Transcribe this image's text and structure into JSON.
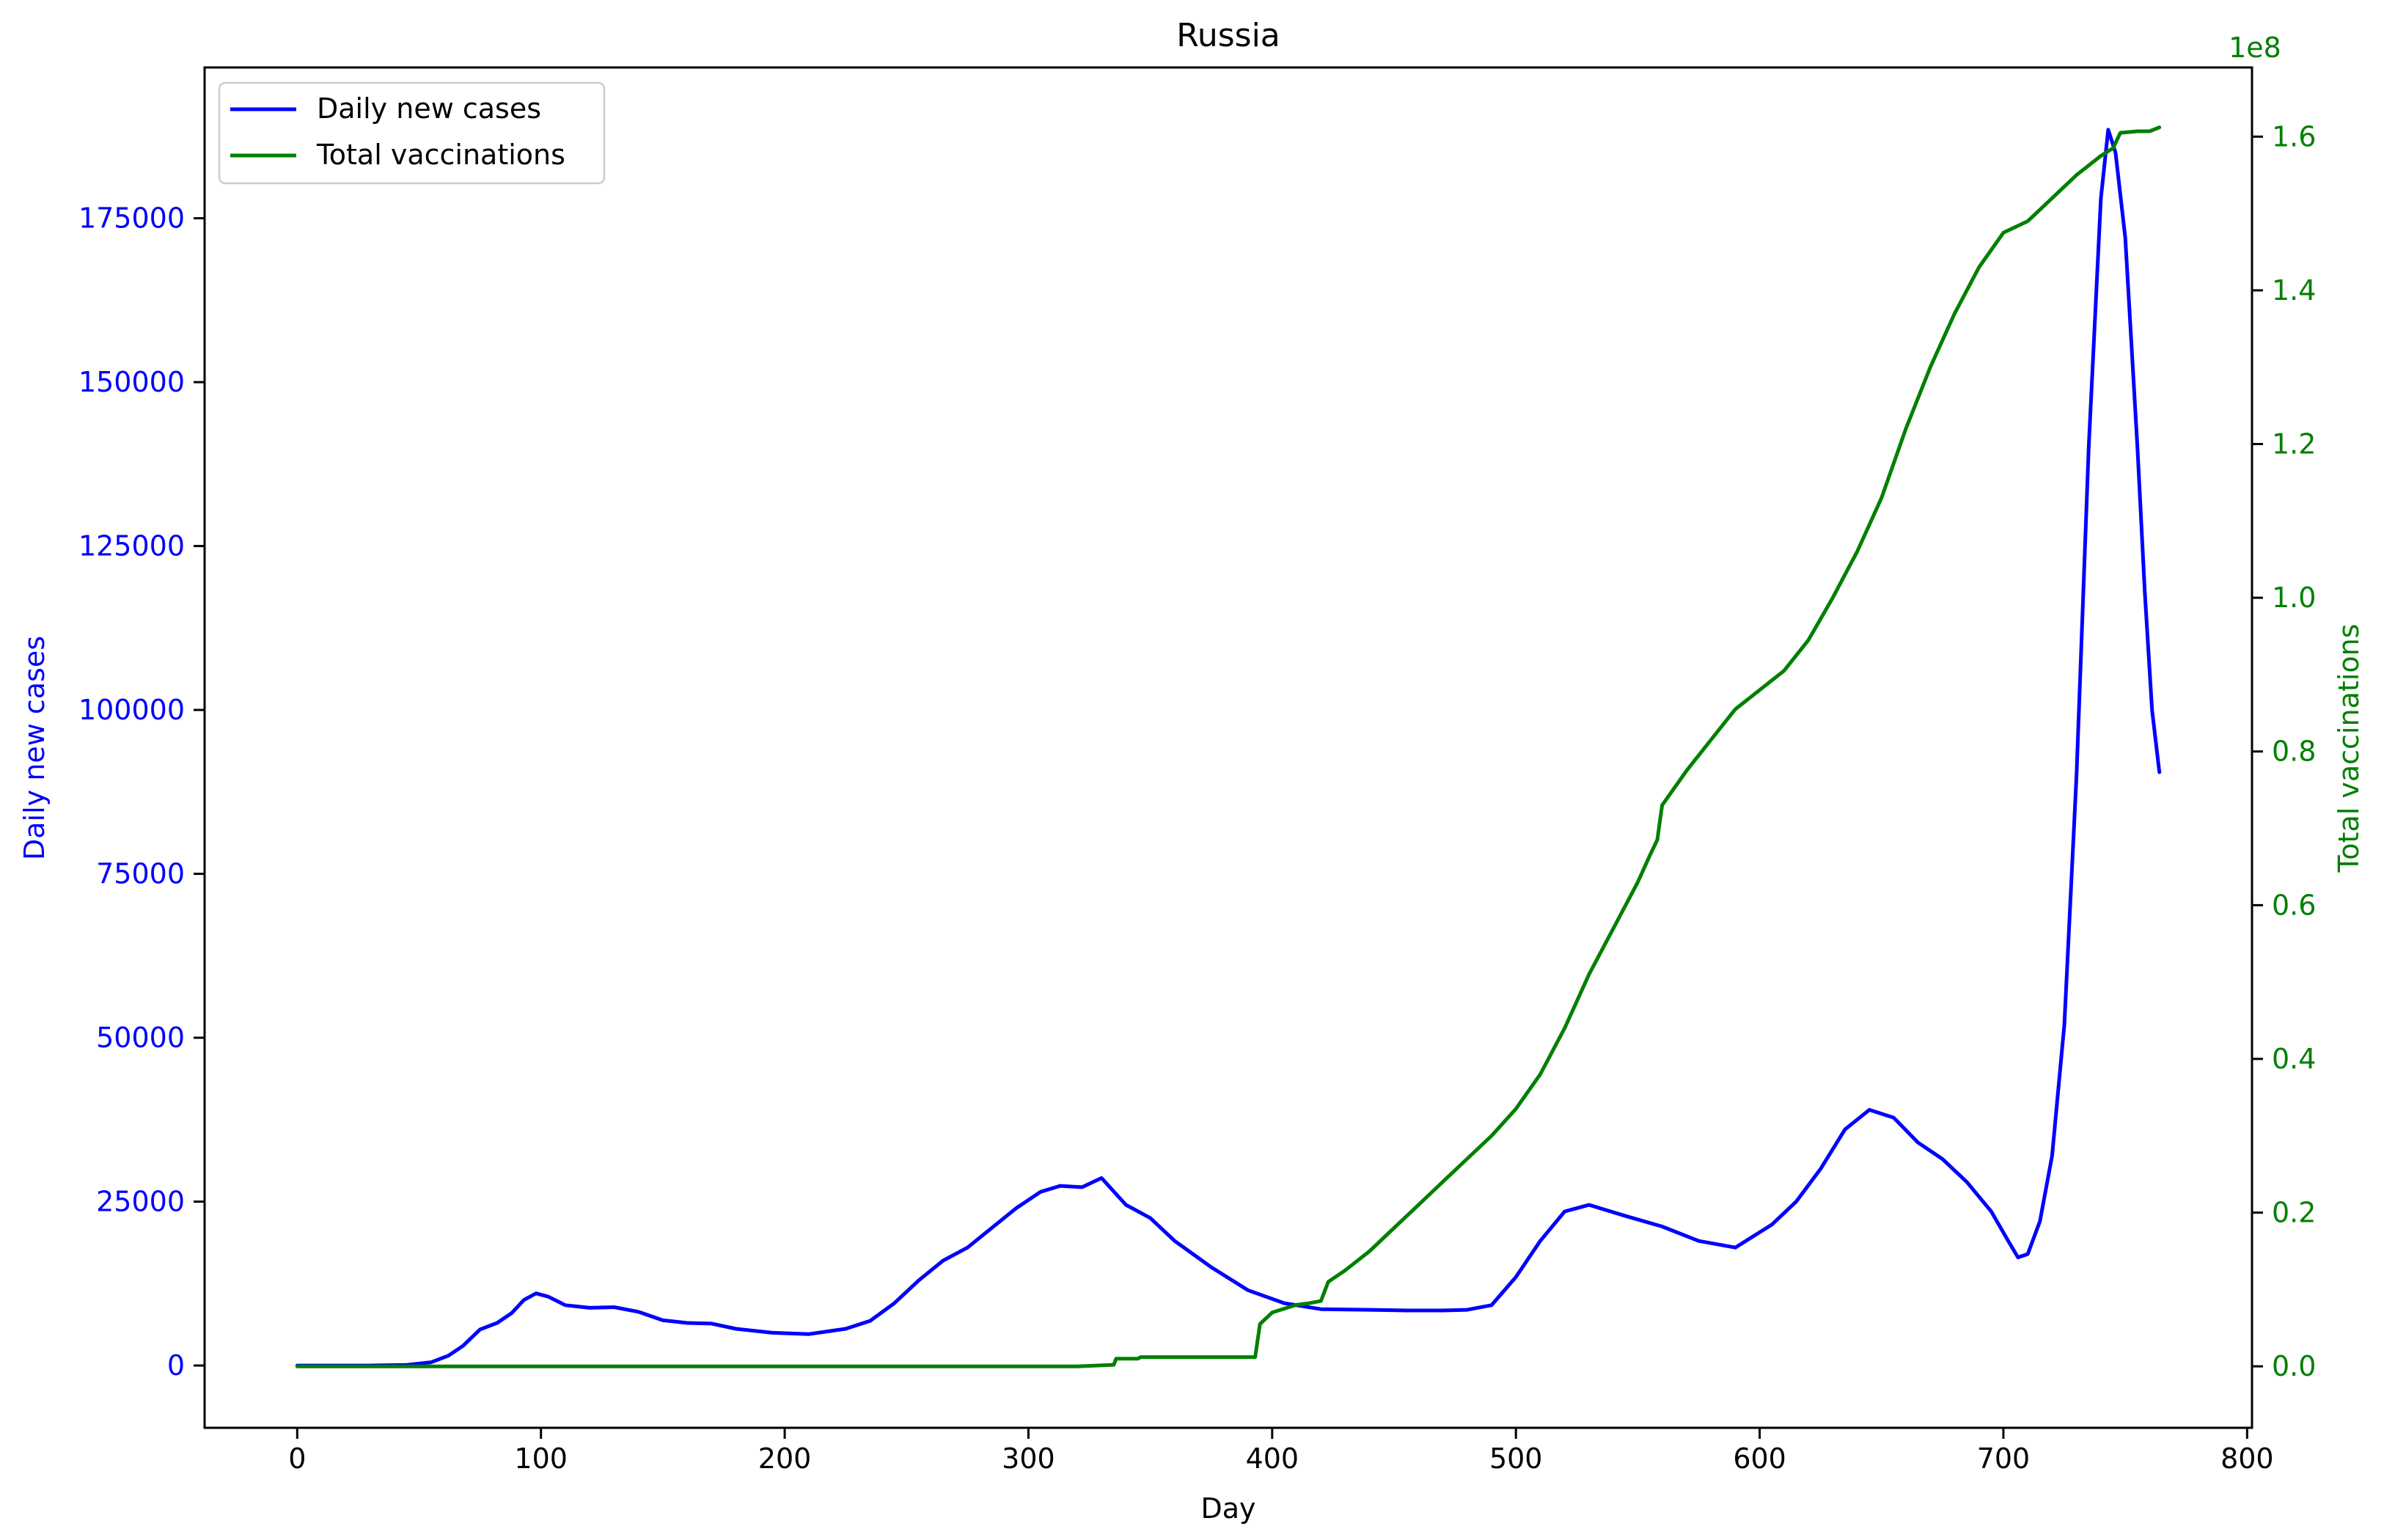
{
  "chart_data": {
    "type": "line",
    "title": "Russia",
    "xlabel": "Day",
    "ylabel_left": "Daily new cases",
    "ylabel_right": "Total vaccinations",
    "right_axis_offset_label": "1e8",
    "xlim": [
      -38,
      802
    ],
    "ylim_left": [
      -9500,
      198000
    ],
    "ylim_right": [
      -0.08,
      1.69
    ],
    "x_ticks": [
      0,
      100,
      200,
      300,
      400,
      500,
      600,
      700,
      800
    ],
    "x_tick_labels": [
      "0",
      "100",
      "200",
      "300",
      "400",
      "500",
      "600",
      "700",
      "800"
    ],
    "y_left_ticks": [
      0,
      25000,
      50000,
      75000,
      100000,
      125000,
      150000,
      175000
    ],
    "y_left_tick_labels": [
      "0",
      "25000",
      "50000",
      "75000",
      "100000",
      "125000",
      "150000",
      "175000"
    ],
    "y_right_ticks": [
      0.0,
      0.2,
      0.4,
      0.6,
      0.8,
      1.0,
      1.2,
      1.4,
      1.6
    ],
    "y_right_tick_labels": [
      "0.0",
      "0.2",
      "0.4",
      "0.6",
      "0.8",
      "1.0",
      "1.2",
      "1.4",
      "1.6"
    ],
    "grid": false,
    "legend_position": "top-left",
    "colors": {
      "left_axis": "#0000ff",
      "right_axis": "#008000",
      "axes": "#000000"
    },
    "series": [
      {
        "name": "Daily new cases",
        "axis": "left",
        "color": "#0000ff",
        "points": [
          [
            0,
            0
          ],
          [
            30,
            0
          ],
          [
            45,
            100
          ],
          [
            55,
            500
          ],
          [
            62,
            1500
          ],
          [
            68,
            3000
          ],
          [
            75,
            5500
          ],
          [
            82,
            6500
          ],
          [
            88,
            8000
          ],
          [
            93,
            10000
          ],
          [
            98,
            11000
          ],
          [
            103,
            10500
          ],
          [
            110,
            9200
          ],
          [
            120,
            8800
          ],
          [
            130,
            8900
          ],
          [
            140,
            8200
          ],
          [
            150,
            6900
          ],
          [
            160,
            6500
          ],
          [
            170,
            6400
          ],
          [
            180,
            5600
          ],
          [
            195,
            5000
          ],
          [
            210,
            4800
          ],
          [
            225,
            5600
          ],
          [
            235,
            6800
          ],
          [
            245,
            9500
          ],
          [
            255,
            13000
          ],
          [
            265,
            16000
          ],
          [
            275,
            18000
          ],
          [
            285,
            21000
          ],
          [
            295,
            24000
          ],
          [
            305,
            26500
          ],
          [
            313,
            27400
          ],
          [
            322,
            27200
          ],
          [
            330,
            28600
          ],
          [
            340,
            24500
          ],
          [
            350,
            22500
          ],
          [
            360,
            19000
          ],
          [
            375,
            15000
          ],
          [
            390,
            11500
          ],
          [
            405,
            9500
          ],
          [
            420,
            8600
          ],
          [
            440,
            8500
          ],
          [
            455,
            8400
          ],
          [
            470,
            8400
          ],
          [
            480,
            8500
          ],
          [
            490,
            9200
          ],
          [
            500,
            13500
          ],
          [
            510,
            19000
          ],
          [
            520,
            23500
          ],
          [
            530,
            24500
          ],
          [
            545,
            22800
          ],
          [
            560,
            21200
          ],
          [
            575,
            19000
          ],
          [
            590,
            18000
          ],
          [
            605,
            21500
          ],
          [
            615,
            25000
          ],
          [
            625,
            30000
          ],
          [
            635,
            36000
          ],
          [
            645,
            39000
          ],
          [
            655,
            37800
          ],
          [
            665,
            34000
          ],
          [
            675,
            31500
          ],
          [
            685,
            28000
          ],
          [
            695,
            23500
          ],
          [
            702,
            19000
          ],
          [
            706,
            16500
          ],
          [
            710,
            17000
          ],
          [
            715,
            22000
          ],
          [
            720,
            32000
          ],
          [
            725,
            52000
          ],
          [
            730,
            90000
          ],
          [
            735,
            140000
          ],
          [
            740,
            178000
          ],
          [
            743,
            188500
          ],
          [
            746,
            185000
          ],
          [
            750,
            172000
          ],
          [
            755,
            140000
          ],
          [
            758,
            118000
          ],
          [
            761,
            100000
          ],
          [
            764,
            90500
          ]
        ]
      },
      {
        "name": "Total vaccinations",
        "axis": "right",
        "color": "#008000",
        "points": [
          [
            0,
            0
          ],
          [
            320,
            0
          ],
          [
            335,
            0.002
          ],
          [
            336,
            0.01
          ],
          [
            345,
            0.01
          ],
          [
            346,
            0.012
          ],
          [
            393,
            0.012
          ],
          [
            395,
            0.055
          ],
          [
            400,
            0.07
          ],
          [
            410,
            0.08
          ],
          [
            415,
            0.082
          ],
          [
            420,
            0.085
          ],
          [
            423,
            0.11
          ],
          [
            430,
            0.125
          ],
          [
            440,
            0.15
          ],
          [
            450,
            0.18
          ],
          [
            460,
            0.21
          ],
          [
            470,
            0.24
          ],
          [
            480,
            0.27
          ],
          [
            490,
            0.3
          ],
          [
            500,
            0.335
          ],
          [
            510,
            0.38
          ],
          [
            520,
            0.44
          ],
          [
            530,
            0.51
          ],
          [
            540,
            0.57
          ],
          [
            550,
            0.63
          ],
          [
            555,
            0.665
          ],
          [
            558,
            0.685
          ],
          [
            560,
            0.73
          ],
          [
            570,
            0.775
          ],
          [
            580,
            0.815
          ],
          [
            590,
            0.855
          ],
          [
            600,
            0.88
          ],
          [
            610,
            0.905
          ],
          [
            620,
            0.945
          ],
          [
            630,
            1.0
          ],
          [
            640,
            1.06
          ],
          [
            650,
            1.13
          ],
          [
            660,
            1.22
          ],
          [
            670,
            1.3
          ],
          [
            680,
            1.37
          ],
          [
            690,
            1.43
          ],
          [
            700,
            1.475
          ],
          [
            710,
            1.49
          ],
          [
            720,
            1.52
          ],
          [
            730,
            1.55
          ],
          [
            740,
            1.575
          ],
          [
            745,
            1.585
          ],
          [
            748,
            1.605
          ],
          [
            755,
            1.607
          ],
          [
            760,
            1.607
          ],
          [
            764,
            1.612
          ]
        ]
      }
    ]
  }
}
